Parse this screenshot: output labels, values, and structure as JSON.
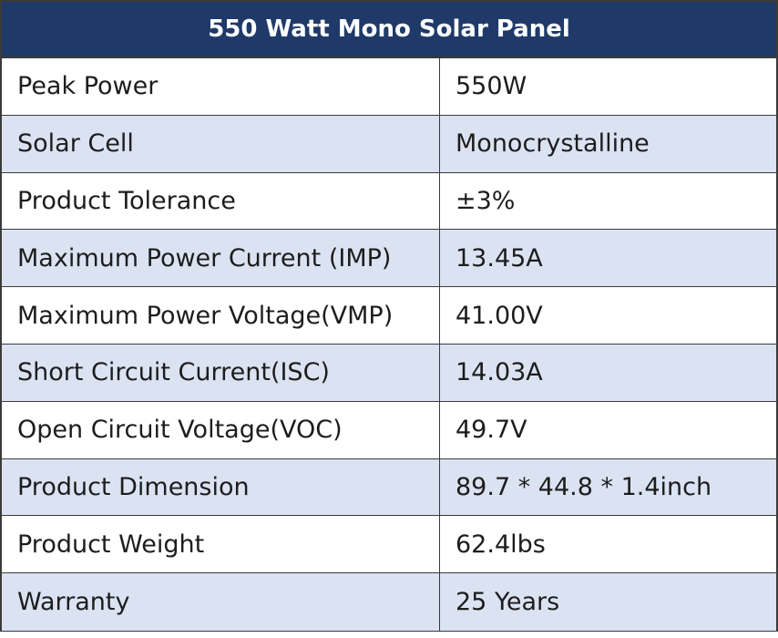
{
  "table": {
    "title": "550 Watt Mono Solar Panel",
    "rows": [
      {
        "label": "Peak Power",
        "value": "550W"
      },
      {
        "label": "Solar Cell",
        "value": "Monocrystalline"
      },
      {
        "label": "Product Tolerance",
        "value": "±3%"
      },
      {
        "label": "Maximum Power Current (IMP)",
        "value": "13.45A"
      },
      {
        "label": "Maximum Power Voltage(VMP)",
        "value": "41.00V"
      },
      {
        "label": "Short Circuit Current(ISC)",
        "value": "14.03A"
      },
      {
        "label": "Open Circuit Voltage(VOC)",
        "value": "49.7V"
      },
      {
        "label": "Product Dimension",
        "value": "89.7 * 44.8 * 1.4inch"
      },
      {
        "label": "Product Weight",
        "value": "62.4lbs"
      },
      {
        "label": "Warranty",
        "value": "25 Years"
      }
    ]
  },
  "colors": {
    "header_bg": "#1f3a68",
    "header_text": "#ffffff",
    "shaded_row": "#dbe3f3",
    "border": "#3a3a3a"
  }
}
